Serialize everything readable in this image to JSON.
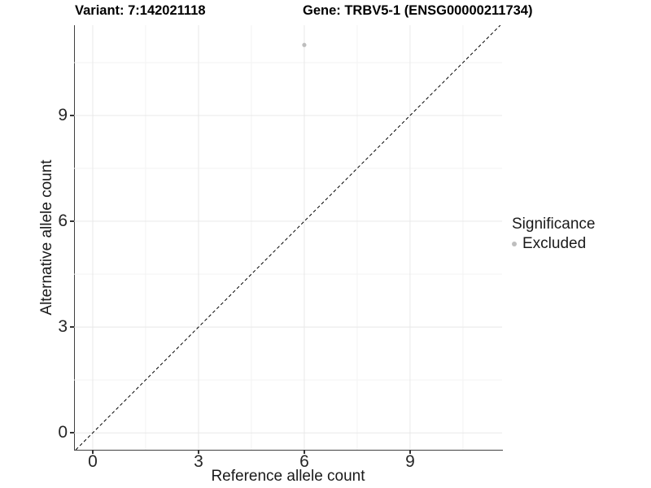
{
  "titles": {
    "variant": "Variant: 7:142021118",
    "gene": "Gene: TRBV5-1 (ENSG00000211734)"
  },
  "chart_data": {
    "type": "scatter",
    "xlabel": "Reference allele count",
    "ylabel": "Alternative allele count",
    "x_ticks": [
      0,
      3,
      6,
      9
    ],
    "y_ticks": [
      0,
      3,
      6,
      9
    ],
    "x_minor_ticks": [
      1.5,
      4.5,
      7.5,
      10.5
    ],
    "y_minor_ticks": [
      1.5,
      4.5,
      7.5,
      10.5
    ],
    "xlim": [
      -0.53,
      11.61
    ],
    "ylim": [
      -0.48,
      11.56
    ],
    "grid": {
      "major": true,
      "minor": true
    },
    "points": [
      {
        "x": 6,
        "y": 11,
        "significance": "Excluded"
      }
    ],
    "reference_line": {
      "type": "identity",
      "style": "dashed",
      "label": "y = x"
    },
    "legend": {
      "title": "Significance",
      "position": "right",
      "items": [
        {
          "label": "Excluded",
          "color": "#bebebe"
        }
      ]
    },
    "colors": {
      "point": "#bebebe",
      "identity_line": "#000000",
      "grid_major": "#e8e8e8",
      "grid_minor": "#f3f3f3",
      "axis_line": "#404040"
    }
  }
}
